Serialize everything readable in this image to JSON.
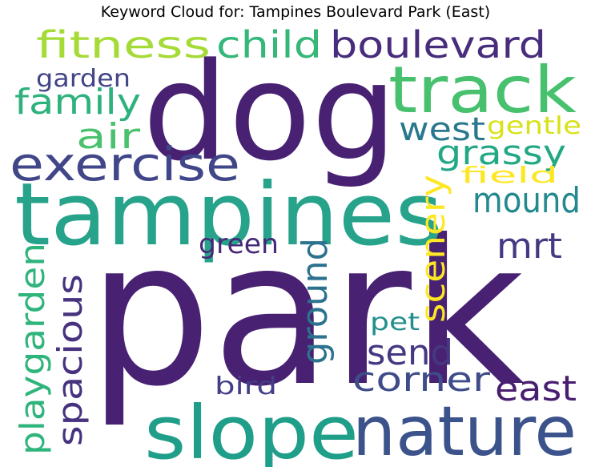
{
  "title": "Keyword Cloud for: Tampines Boulevard Park (East)",
  "words": [
    {
      "text": "park",
      "color": "#482173"
    },
    {
      "text": "dog",
      "color": "#482173"
    },
    {
      "text": "tampines",
      "color": "#26a38a"
    },
    {
      "text": "slope",
      "color": "#1f9e89"
    },
    {
      "text": "nature",
      "color": "#3b528b"
    },
    {
      "text": "track",
      "color": "#47c16e"
    },
    {
      "text": "exercise",
      "color": "#404688"
    },
    {
      "text": "boulevard",
      "color": "#472d7b"
    },
    {
      "text": "fitness",
      "color": "#a5db36"
    },
    {
      "text": "child",
      "color": "#35b779"
    },
    {
      "text": "family",
      "color": "#2db27d"
    },
    {
      "text": "garden",
      "color": "#414487"
    },
    {
      "text": "air",
      "color": "#4ac16d"
    },
    {
      "text": "west",
      "color": "#2a788e"
    },
    {
      "text": "gentle",
      "color": "#d8e219"
    },
    {
      "text": "grassy",
      "color": "#22a884"
    },
    {
      "text": "field",
      "color": "#fde725"
    },
    {
      "text": "mound",
      "color": "#23898e"
    },
    {
      "text": "mrt",
      "color": "#443983"
    },
    {
      "text": "scenery",
      "color": "#fde725"
    },
    {
      "text": "green",
      "color": "#482878"
    },
    {
      "text": "ground",
      "color": "#2c728e"
    },
    {
      "text": "playgarden",
      "color": "#2fb47c"
    },
    {
      "text": "spacious",
      "color": "#46327e"
    },
    {
      "text": "pet",
      "color": "#218f8d"
    },
    {
      "text": "send",
      "color": "#453781"
    },
    {
      "text": "corner",
      "color": "#3e4c8a"
    },
    {
      "text": "east",
      "color": "#481f70"
    },
    {
      "text": "bird",
      "color": "#433e85"
    }
  ]
}
